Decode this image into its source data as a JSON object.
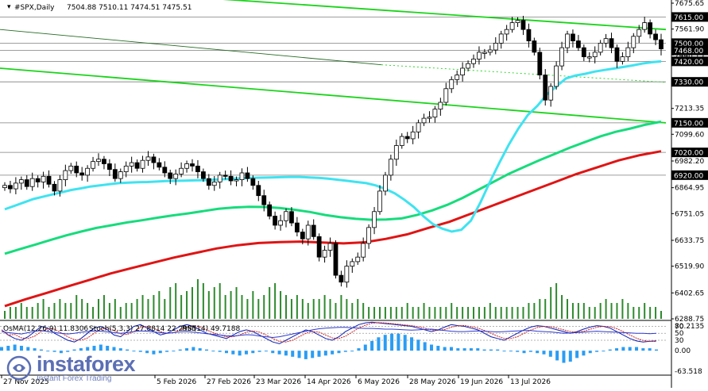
{
  "header": {
    "symbol_label": "#SPX,Daily",
    "ohlc_label": "7504.88 7510.11 7474.51 7475.51"
  },
  "indicator_header": {
    "macd_label": "OsMA(12,26,9) 11.8306",
    "stoch_label": "Stoch(5,3,3) 27.8814 22.2985",
    "rsi_label": "RSI(14) 49.7188"
  },
  "logo": {
    "name": "instaforex",
    "tagline": "Instant Forex Trading"
  },
  "colors": {
    "bull_candle": "#000000",
    "bear_candle": "#000000",
    "ma_fast": "#3fe3f0",
    "ma_mid": "#16dc7c",
    "ma_slow": "#e01414",
    "channel": "#1ad41a",
    "volume": "#2f8a2f",
    "histogram": "#2a9df4",
    "stoch_main": "#0d1fb0",
    "stoch_signal": "#cc2323",
    "rsi": "#2e39d0",
    "level_line": "#7f7f7f",
    "price_tag": "#000000",
    "price_tag_text": "#ffffff"
  },
  "chart_data": {
    "type": "candlestick",
    "title": "#SPX,Daily",
    "price_axis_labels": [
      "7675.65",
      "7561.90",
      "7448.15",
      "7213.35",
      "7099.60",
      "6982.20",
      "6864.95",
      "6751.05",
      "6633.75",
      "6519.90",
      "6402.65",
      "6288.75"
    ],
    "price_levels": [
      {
        "value": 7615.0,
        "label": "7615.00"
      },
      {
        "value": 7500.0,
        "label": "7500.00"
      },
      {
        "value": 7468.0,
        "label": "7468.00"
      },
      {
        "value": 7420.0,
        "label": "7420.00"
      },
      {
        "value": 7330.0,
        "label": "7330.00"
      },
      {
        "value": 7150.0,
        "label": "7150.00"
      },
      {
        "value": 7020.0,
        "label": "7020.00"
      },
      {
        "value": 6920.0,
        "label": "6920.00"
      }
    ],
    "date_axis_labels": [
      "27 Nov 2025",
      "5 Feb 2026",
      "27 Feb 2026",
      "23 Mar 2026",
      "14 Apr 2026",
      "6 May 2026",
      "28 May 2026",
      "19 Jun 2026",
      "13 Jul 2026"
    ],
    "indicator_axis_labels": [
      "80.2135",
      "70",
      "50",
      "30",
      "0.00",
      "-63.518"
    ],
    "price_range": [
      6288.75,
      7675.65
    ],
    "closes": [
      6875,
      6860,
      6885,
      6900,
      6870,
      6905,
      6890,
      6915,
      6880,
      6850,
      6900,
      6940,
      6960,
      6930,
      6920,
      6950,
      6980,
      6990,
      6970,
      6945,
      6905,
      6935,
      6960,
      6975,
      6950,
      6985,
      7000,
      6975,
      6955,
      6930,
      6905,
      6925,
      6950,
      6970,
      6960,
      6935,
      6905,
      6875,
      6890,
      6920,
      6915,
      6895,
      6900,
      6930,
      6905,
      6875,
      6830,
      6790,
      6740,
      6700,
      6720,
      6760,
      6710,
      6670,
      6640,
      6700,
      6650,
      6560,
      6590,
      6620,
      6480,
      6450,
      6520,
      6540,
      6560,
      6620,
      6690,
      6760,
      6850,
      6920,
      6990,
      7050,
      7090,
      7080,
      7110,
      7150,
      7170,
      7175,
      7210,
      7240,
      7300,
      7340,
      7360,
      7390,
      7410,
      7430,
      7460,
      7460,
      7470,
      7500,
      7540,
      7560,
      7590,
      7600,
      7560,
      7510,
      7460,
      7360,
      7250,
      7310,
      7400,
      7480,
      7540,
      7510,
      7480,
      7440,
      7440,
      7460,
      7500,
      7520,
      7480,
      7420,
      7440,
      7480,
      7530,
      7560,
      7590,
      7540,
      7515,
      7475
    ],
    "ma_fast": [
      6770,
      6785,
      6800,
      6815,
      6825,
      6835,
      6845,
      6855,
      6862,
      6870,
      6875,
      6880,
      6885,
      6887,
      6889,
      6890,
      6892,
      6894,
      6895,
      6896,
      6897,
      6898,
      6900,
      6902,
      6905,
      6907,
      6908,
      6909,
      6910,
      6911,
      6912,
      6912,
      6910,
      6908,
      6905,
      6900,
      6895,
      6890,
      6885,
      6875,
      6860,
      6840,
      6812,
      6780,
      6740,
      6705,
      6685,
      6672,
      6680,
      6720,
      6800,
      6890,
      6975,
      7055,
      7125,
      7185,
      7225,
      7275,
      7310,
      7345,
      7358,
      7365,
      7375,
      7382,
      7388,
      7395,
      7402,
      7410,
      7416,
      7420
    ],
    "ma_mid": [
      6575,
      6595,
      6615,
      6635,
      6655,
      6672,
      6688,
      6700,
      6712,
      6722,
      6733,
      6743,
      6752,
      6762,
      6772,
      6778,
      6781,
      6780,
      6776,
      6768,
      6758,
      6745,
      6735,
      6728,
      6724,
      6725,
      6730,
      6745,
      6765,
      6790,
      6820,
      6855,
      6890,
      6925,
      6955,
      6985,
      7012,
      7040,
      7065,
      7090,
      7110,
      7125,
      7142,
      7155
    ],
    "ma_slow": [
      6345,
      6375,
      6403,
      6432,
      6460,
      6488,
      6512,
      6535,
      6558,
      6578,
      6598,
      6612,
      6622,
      6626,
      6628,
      6624,
      6620,
      6625,
      6640,
      6660,
      6688,
      6715,
      6750,
      6785,
      6820,
      6855,
      6890,
      6925,
      6955,
      6985,
      7008,
      7025
    ],
    "volume": [
      2,
      3,
      3,
      4,
      3,
      3,
      4,
      5,
      3,
      4,
      5,
      4,
      4,
      6,
      5,
      4,
      3,
      5,
      6,
      4,
      5,
      3,
      4,
      4,
      5,
      6,
      5,
      6,
      7,
      5,
      8,
      9,
      6,
      7,
      8,
      10,
      9,
      7,
      8,
      9,
      6,
      7,
      8,
      6,
      5,
      7,
      5,
      6,
      8,
      9,
      7,
      6,
      5,
      6,
      5,
      4,
      5,
      5,
      6,
      5,
      4,
      6,
      5,
      4,
      5,
      4,
      3,
      3,
      3,
      3,
      3,
      3,
      3,
      4,
      3,
      3,
      4,
      3,
      3,
      3,
      3,
      4,
      3,
      3,
      3,
      3,
      3,
      3,
      4,
      3,
      3,
      3,
      3,
      3,
      3,
      4,
      4,
      5,
      5,
      8,
      9,
      6,
      5,
      4,
      4,
      4,
      3,
      3,
      4,
      5,
      4,
      4,
      5,
      4,
      3,
      3,
      4,
      3,
      3,
      2
    ],
    "osma_histogram": [
      3,
      4,
      5,
      4,
      3,
      2,
      1,
      0,
      -1,
      -2,
      -1,
      1,
      2,
      3,
      4,
      5,
      4,
      3,
      2,
      1,
      0,
      -1,
      -2,
      -3,
      -2,
      -1,
      0,
      1,
      2,
      3,
      2,
      1,
      0,
      -1,
      -2,
      -3,
      -4,
      -3,
      -2,
      -1,
      0,
      -2,
      -3,
      -4,
      -5,
      -6,
      -7,
      -6,
      -5,
      -4,
      -3,
      -2,
      -1,
      0,
      2,
      5,
      8,
      11,
      13,
      14,
      14,
      13,
      11,
      9,
      7,
      5,
      4,
      3,
      3,
      2,
      2,
      2,
      2,
      1,
      1,
      1,
      0,
      0,
      -1,
      -2,
      -1,
      -2,
      -3,
      -5,
      -8,
      -10,
      -9,
      -6,
      -4,
      -2,
      -1,
      0,
      1,
      2,
      3,
      3,
      3,
      2,
      2,
      1
    ],
    "stoch": [
      60,
      45,
      35,
      30,
      40,
      55,
      70,
      65,
      50,
      40,
      30,
      25,
      35,
      50,
      65,
      70,
      60,
      45,
      40,
      55,
      70,
      75,
      65,
      55,
      45,
      50,
      60,
      70,
      75,
      70,
      60,
      50,
      45,
      40,
      35,
      45,
      55,
      60,
      55,
      45,
      35,
      25,
      20,
      30,
      40,
      50,
      60,
      55,
      45,
      35,
      30,
      40,
      55,
      65,
      75,
      80,
      82,
      80,
      78,
      76,
      74,
      72,
      70,
      65,
      60,
      55,
      60,
      68,
      75,
      72,
      70,
      65,
      60,
      50,
      40,
      35,
      30,
      40,
      50,
      60,
      68,
      72,
      70,
      65,
      60,
      55,
      50,
      55,
      62,
      68,
      72,
      70,
      65,
      55,
      45,
      35,
      28,
      25,
      27,
      28
    ],
    "rsi": [
      55,
      52,
      50,
      48,
      52,
      56,
      58,
      55,
      52,
      50,
      48,
      50,
      53,
      55,
      57,
      56,
      54,
      52,
      50,
      52,
      55,
      57,
      56,
      54,
      52,
      50,
      52,
      54,
      55,
      53,
      51,
      49,
      47,
      45,
      43,
      42,
      44,
      46,
      45,
      42,
      40,
      38,
      40,
      44,
      48,
      52,
      56,
      60,
      63,
      65,
      66,
      67,
      67,
      66,
      65,
      64,
      64,
      63,
      62,
      62,
      61,
      60,
      59,
      60,
      61,
      62,
      60,
      58,
      56,
      55,
      55,
      56,
      57,
      56,
      55,
      54,
      55,
      56,
      57,
      58,
      58,
      56,
      55,
      54,
      52,
      50,
      51,
      52,
      53,
      55,
      56,
      55,
      54,
      53,
      52,
      51,
      50,
      50,
      49,
      50
    ]
  }
}
